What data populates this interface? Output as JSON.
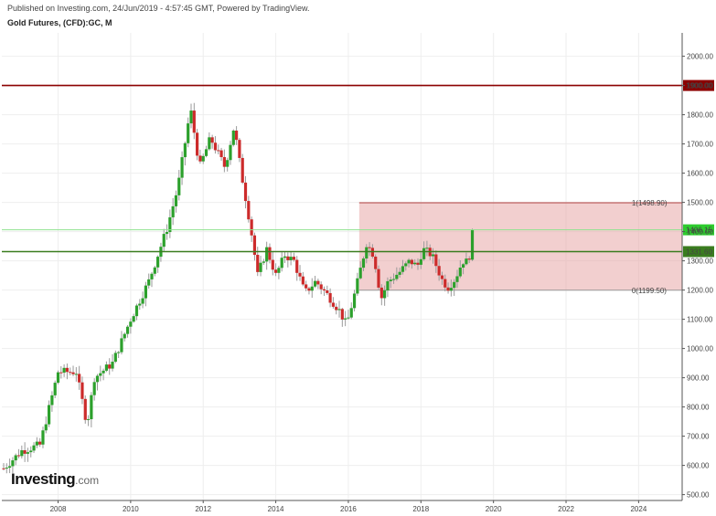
{
  "header": {
    "published": "Published on Investing.com, 24/Jun/2019 - 4:57:45 GMT, Powered by TradingView.",
    "symbol": "Gold Futures, (CFD):GC, M"
  },
  "logo": {
    "main": "Investing",
    "suffix": ".com"
  },
  "colors": {
    "up": "#2ca02c",
    "down": "#cc2b2b",
    "resistance": "#8b0000",
    "support": "#3a7d1f",
    "current": "#8fe28f",
    "fib_zone": "#e8a8a8"
  },
  "chart_data": {
    "type": "candlestick",
    "title": "",
    "xlabel": "",
    "ylabel": "",
    "ylim": [
      480,
      2080
    ],
    "xlim": [
      2006.45,
      2025.2
    ],
    "x_ticks": [
      "2008",
      "2010",
      "2012",
      "2014",
      "2016",
      "2018",
      "2020",
      "2022",
      "2024"
    ],
    "y_ticks": [
      "500.00",
      "600.00",
      "700.00",
      "800.00",
      "900.00",
      "1000.00",
      "1100.00",
      "1200.00",
      "1300.00",
      "1400.00",
      "1500.00",
      "1600.00",
      "1700.00",
      "1800.00",
      "1900.00",
      "2000.00"
    ],
    "horizontal_lines": [
      {
        "value": 1900,
        "label": "1900.00",
        "style": "resistance"
      },
      {
        "value": 1406.15,
        "label": "1406.15",
        "style": "current"
      },
      {
        "value": 1331.6,
        "label": "1331.60",
        "style": "support"
      }
    ],
    "fib_zone": {
      "start_x": 2016.3,
      "end_x": 2025.2,
      "levels": [
        {
          "ratio": "1",
          "value": 1498.9,
          "label": "1(1498.90)"
        },
        {
          "ratio": "0",
          "value": 1199.5,
          "label": "0(1199.50)"
        }
      ]
    },
    "series_anchors": [
      [
        2006.5,
        590
      ],
      [
        2007.0,
        650
      ],
      [
        2007.5,
        670
      ],
      [
        2008.0,
        920
      ],
      [
        2008.5,
        920
      ],
      [
        2008.8,
        740
      ],
      [
        2009.0,
        900
      ],
      [
        2009.5,
        950
      ],
      [
        2010.0,
        1100
      ],
      [
        2010.5,
        1230
      ],
      [
        2011.0,
        1410
      ],
      [
        2011.3,
        1550
      ],
      [
        2011.65,
        1820
      ],
      [
        2011.9,
        1620
      ],
      [
        2012.2,
        1720
      ],
      [
        2012.6,
        1620
      ],
      [
        2012.85,
        1760
      ],
      [
        2013.05,
        1600
      ],
      [
        2013.3,
        1420
      ],
      [
        2013.5,
        1250
      ],
      [
        2013.75,
        1340
      ],
      [
        2014.0,
        1250
      ],
      [
        2014.25,
        1320
      ],
      [
        2014.5,
        1300
      ],
      [
        2014.8,
        1190
      ],
      [
        2015.1,
        1230
      ],
      [
        2015.45,
        1180
      ],
      [
        2015.75,
        1130
      ],
      [
        2015.95,
        1080
      ],
      [
        2016.2,
        1200
      ],
      [
        2016.5,
        1360
      ],
      [
        2016.7,
        1320
      ],
      [
        2016.9,
        1170
      ],
      [
        2017.1,
        1230
      ],
      [
        2017.4,
        1260
      ],
      [
        2017.7,
        1300
      ],
      [
        2017.9,
        1280
      ],
      [
        2018.05,
        1340
      ],
      [
        2018.3,
        1320
      ],
      [
        2018.6,
        1230
      ],
      [
        2018.75,
        1210
      ],
      [
        2018.95,
        1240
      ],
      [
        2019.15,
        1300
      ],
      [
        2019.3,
        1295
      ],
      [
        2019.45,
        1400
      ]
    ]
  }
}
